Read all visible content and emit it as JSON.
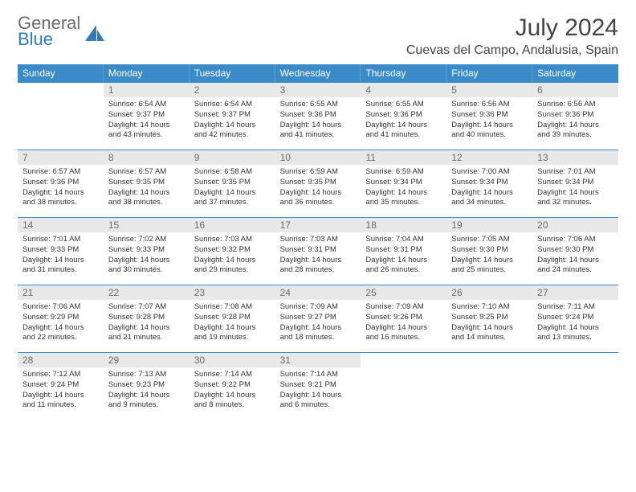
{
  "logo": {
    "line1": "General",
    "line2": "Blue"
  },
  "header": {
    "title": "July 2024",
    "location": "Cuevas del Campo, Andalusia, Spain"
  },
  "dayNames": [
    "Sunday",
    "Monday",
    "Tuesday",
    "Wednesday",
    "Thursday",
    "Friday",
    "Saturday"
  ],
  "colors": {
    "headerBg": "#3b8bc9",
    "headerText": "#ffffff",
    "numBg": "#e8e8e8",
    "borderTop": "#3b8bc9",
    "logoGray": "#6b6b6b",
    "logoBlue": "#2f7bbf"
  },
  "weeks": [
    [
      {
        "empty": true
      },
      {
        "num": "1",
        "sunrise": "Sunrise: 6:54 AM",
        "sunset": "Sunset: 9:37 PM",
        "dl1": "Daylight: 14 hours",
        "dl2": "and 43 minutes."
      },
      {
        "num": "2",
        "sunrise": "Sunrise: 6:54 AM",
        "sunset": "Sunset: 9:37 PM",
        "dl1": "Daylight: 14 hours",
        "dl2": "and 42 minutes."
      },
      {
        "num": "3",
        "sunrise": "Sunrise: 6:55 AM",
        "sunset": "Sunset: 9:36 PM",
        "dl1": "Daylight: 14 hours",
        "dl2": "and 41 minutes."
      },
      {
        "num": "4",
        "sunrise": "Sunrise: 6:55 AM",
        "sunset": "Sunset: 9:36 PM",
        "dl1": "Daylight: 14 hours",
        "dl2": "and 41 minutes."
      },
      {
        "num": "5",
        "sunrise": "Sunrise: 6:56 AM",
        "sunset": "Sunset: 9:36 PM",
        "dl1": "Daylight: 14 hours",
        "dl2": "and 40 minutes."
      },
      {
        "num": "6",
        "sunrise": "Sunrise: 6:56 AM",
        "sunset": "Sunset: 9:36 PM",
        "dl1": "Daylight: 14 hours",
        "dl2": "and 39 minutes."
      }
    ],
    [
      {
        "num": "7",
        "sunrise": "Sunrise: 6:57 AM",
        "sunset": "Sunset: 9:36 PM",
        "dl1": "Daylight: 14 hours",
        "dl2": "and 38 minutes."
      },
      {
        "num": "8",
        "sunrise": "Sunrise: 6:57 AM",
        "sunset": "Sunset: 9:35 PM",
        "dl1": "Daylight: 14 hours",
        "dl2": "and 38 minutes."
      },
      {
        "num": "9",
        "sunrise": "Sunrise: 6:58 AM",
        "sunset": "Sunset: 9:35 PM",
        "dl1": "Daylight: 14 hours",
        "dl2": "and 37 minutes."
      },
      {
        "num": "10",
        "sunrise": "Sunrise: 6:59 AM",
        "sunset": "Sunset: 9:35 PM",
        "dl1": "Daylight: 14 hours",
        "dl2": "and 36 minutes."
      },
      {
        "num": "11",
        "sunrise": "Sunrise: 6:59 AM",
        "sunset": "Sunset: 9:34 PM",
        "dl1": "Daylight: 14 hours",
        "dl2": "and 35 minutes."
      },
      {
        "num": "12",
        "sunrise": "Sunrise: 7:00 AM",
        "sunset": "Sunset: 9:34 PM",
        "dl1": "Daylight: 14 hours",
        "dl2": "and 34 minutes."
      },
      {
        "num": "13",
        "sunrise": "Sunrise: 7:01 AM",
        "sunset": "Sunset: 9:34 PM",
        "dl1": "Daylight: 14 hours",
        "dl2": "and 32 minutes."
      }
    ],
    [
      {
        "num": "14",
        "sunrise": "Sunrise: 7:01 AM",
        "sunset": "Sunset: 9:33 PM",
        "dl1": "Daylight: 14 hours",
        "dl2": "and 31 minutes."
      },
      {
        "num": "15",
        "sunrise": "Sunrise: 7:02 AM",
        "sunset": "Sunset: 9:33 PM",
        "dl1": "Daylight: 14 hours",
        "dl2": "and 30 minutes."
      },
      {
        "num": "16",
        "sunrise": "Sunrise: 7:03 AM",
        "sunset": "Sunset: 9:32 PM",
        "dl1": "Daylight: 14 hours",
        "dl2": "and 29 minutes."
      },
      {
        "num": "17",
        "sunrise": "Sunrise: 7:03 AM",
        "sunset": "Sunset: 9:31 PM",
        "dl1": "Daylight: 14 hours",
        "dl2": "and 28 minutes."
      },
      {
        "num": "18",
        "sunrise": "Sunrise: 7:04 AM",
        "sunset": "Sunset: 9:31 PM",
        "dl1": "Daylight: 14 hours",
        "dl2": "and 26 minutes."
      },
      {
        "num": "19",
        "sunrise": "Sunrise: 7:05 AM",
        "sunset": "Sunset: 9:30 PM",
        "dl1": "Daylight: 14 hours",
        "dl2": "and 25 minutes."
      },
      {
        "num": "20",
        "sunrise": "Sunrise: 7:06 AM",
        "sunset": "Sunset: 9:30 PM",
        "dl1": "Daylight: 14 hours",
        "dl2": "and 24 minutes."
      }
    ],
    [
      {
        "num": "21",
        "sunrise": "Sunrise: 7:06 AM",
        "sunset": "Sunset: 9:29 PM",
        "dl1": "Daylight: 14 hours",
        "dl2": "and 22 minutes."
      },
      {
        "num": "22",
        "sunrise": "Sunrise: 7:07 AM",
        "sunset": "Sunset: 9:28 PM",
        "dl1": "Daylight: 14 hours",
        "dl2": "and 21 minutes."
      },
      {
        "num": "23",
        "sunrise": "Sunrise: 7:08 AM",
        "sunset": "Sunset: 9:28 PM",
        "dl1": "Daylight: 14 hours",
        "dl2": "and 19 minutes."
      },
      {
        "num": "24",
        "sunrise": "Sunrise: 7:09 AM",
        "sunset": "Sunset: 9:27 PM",
        "dl1": "Daylight: 14 hours",
        "dl2": "and 18 minutes."
      },
      {
        "num": "25",
        "sunrise": "Sunrise: 7:09 AM",
        "sunset": "Sunset: 9:26 PM",
        "dl1": "Daylight: 14 hours",
        "dl2": "and 16 minutes."
      },
      {
        "num": "26",
        "sunrise": "Sunrise: 7:10 AM",
        "sunset": "Sunset: 9:25 PM",
        "dl1": "Daylight: 14 hours",
        "dl2": "and 14 minutes."
      },
      {
        "num": "27",
        "sunrise": "Sunrise: 7:11 AM",
        "sunset": "Sunset: 9:24 PM",
        "dl1": "Daylight: 14 hours",
        "dl2": "and 13 minutes."
      }
    ],
    [
      {
        "num": "28",
        "sunrise": "Sunrise: 7:12 AM",
        "sunset": "Sunset: 9:24 PM",
        "dl1": "Daylight: 14 hours",
        "dl2": "and 11 minutes."
      },
      {
        "num": "29",
        "sunrise": "Sunrise: 7:13 AM",
        "sunset": "Sunset: 9:23 PM",
        "dl1": "Daylight: 14 hours",
        "dl2": "and 9 minutes."
      },
      {
        "num": "30",
        "sunrise": "Sunrise: 7:14 AM",
        "sunset": "Sunset: 9:22 PM",
        "dl1": "Daylight: 14 hours",
        "dl2": "and 8 minutes."
      },
      {
        "num": "31",
        "sunrise": "Sunrise: 7:14 AM",
        "sunset": "Sunset: 9:21 PM",
        "dl1": "Daylight: 14 hours",
        "dl2": "and 6 minutes."
      },
      {
        "empty": true
      },
      {
        "empty": true
      },
      {
        "empty": true
      }
    ]
  ]
}
